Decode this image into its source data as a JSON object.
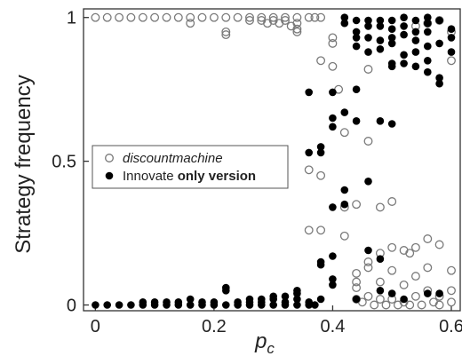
{
  "chart_data": {
    "type": "scatter",
    "title": "",
    "xlabel": "p",
    "xlabel_subscript": "c",
    "ylabel": "Strategy frequency",
    "xlim": [
      -0.02,
      0.615
    ],
    "ylim": [
      -0.02,
      1.03
    ],
    "x_ticks": [
      0,
      0.2,
      0.4,
      0.6
    ],
    "x_tick_labels": [
      "0",
      "0.2",
      "0.4",
      "0.6"
    ],
    "y_ticks": [
      0,
      0.5,
      1
    ],
    "y_tick_labels": [
      "0",
      "0.5",
      "1"
    ],
    "grid": false,
    "legend_position": "center-left",
    "legend": [
      {
        "label": "discountmachine",
        "marker": "open-circle",
        "style": "italic"
      },
      {
        "label_plain": "Innovate",
        "label_bold": "only version",
        "marker": "filled-circle"
      }
    ],
    "series": [
      {
        "name": "discountmachine",
        "marker": "open",
        "color": "#7a7a7a",
        "points": [
          [
            0.0,
            1.0
          ],
          [
            0.02,
            1.0
          ],
          [
            0.04,
            1.0
          ],
          [
            0.06,
            1.0
          ],
          [
            0.08,
            1.0
          ],
          [
            0.1,
            1.0
          ],
          [
            0.12,
            1.0
          ],
          [
            0.14,
            1.0
          ],
          [
            0.16,
            1.0
          ],
          [
            0.16,
            0.98
          ],
          [
            0.18,
            1.0
          ],
          [
            0.2,
            1.0
          ],
          [
            0.22,
            1.0
          ],
          [
            0.22,
            0.95
          ],
          [
            0.22,
            0.94
          ],
          [
            0.24,
            1.0
          ],
          [
            0.26,
            1.0
          ],
          [
            0.26,
            0.99
          ],
          [
            0.28,
            1.0
          ],
          [
            0.28,
            0.99
          ],
          [
            0.29,
            0.98
          ],
          [
            0.3,
            1.0
          ],
          [
            0.3,
            0.99
          ],
          [
            0.31,
            0.98
          ],
          [
            0.32,
            1.0
          ],
          [
            0.32,
            0.99
          ],
          [
            0.33,
            0.97
          ],
          [
            0.34,
            1.0
          ],
          [
            0.34,
            0.98
          ],
          [
            0.34,
            0.96
          ],
          [
            0.34,
            0.95
          ],
          [
            0.36,
            1.0
          ],
          [
            0.37,
            1.0
          ],
          [
            0.38,
            1.0
          ],
          [
            0.38,
            0.85
          ],
          [
            0.4,
            0.93
          ],
          [
            0.4,
            0.91
          ],
          [
            0.4,
            0.83
          ],
          [
            0.41,
            0.75
          ],
          [
            0.42,
            0.6
          ],
          [
            0.36,
            0.47
          ],
          [
            0.38,
            0.45
          ],
          [
            0.36,
            0.26
          ],
          [
            0.38,
            0.26
          ],
          [
            0.42,
            0.34
          ],
          [
            0.42,
            0.24
          ],
          [
            0.44,
            0.35
          ],
          [
            0.46,
            0.57
          ],
          [
            0.46,
            0.82
          ],
          [
            0.48,
            0.34
          ],
          [
            0.5,
            0.36
          ],
          [
            0.44,
            0.11
          ],
          [
            0.44,
            0.08
          ],
          [
            0.44,
            0.06
          ],
          [
            0.44,
            0.02
          ],
          [
            0.45,
            0.01
          ],
          [
            0.46,
            0.15
          ],
          [
            0.46,
            0.13
          ],
          [
            0.46,
            0.03
          ],
          [
            0.47,
            0.0
          ],
          [
            0.48,
            0.18
          ],
          [
            0.48,
            0.08
          ],
          [
            0.48,
            0.02
          ],
          [
            0.49,
            0.0
          ],
          [
            0.5,
            0.2
          ],
          [
            0.5,
            0.12
          ],
          [
            0.5,
            0.02
          ],
          [
            0.51,
            0.0
          ],
          [
            0.52,
            0.19
          ],
          [
            0.52,
            0.07
          ],
          [
            0.52,
            0.01
          ],
          [
            0.53,
            0.0
          ],
          [
            0.53,
            0.18
          ],
          [
            0.54,
            0.2
          ],
          [
            0.54,
            0.1
          ],
          [
            0.54,
            0.03
          ],
          [
            0.55,
            0.0
          ],
          [
            0.56,
            0.23
          ],
          [
            0.56,
            0.13
          ],
          [
            0.56,
            0.05
          ],
          [
            0.57,
            0.01
          ],
          [
            0.58,
            0.21
          ],
          [
            0.58,
            0.03
          ],
          [
            0.58,
            0.0
          ],
          [
            0.6,
            0.12
          ],
          [
            0.6,
            0.05
          ],
          [
            0.6,
            0.01
          ],
          [
            0.6,
            0.85
          ],
          [
            0.6,
            0.95
          ],
          [
            0.58,
            0.99
          ],
          [
            0.56,
            0.98
          ],
          [
            0.54,
            0.97
          ]
        ]
      },
      {
        "name": "Innovate only version",
        "marker": "filled",
        "color": "#000000",
        "points": [
          [
            0.0,
            0.0
          ],
          [
            0.02,
            0.0
          ],
          [
            0.04,
            0.0
          ],
          [
            0.06,
            0.0
          ],
          [
            0.08,
            0.0
          ],
          [
            0.08,
            0.01
          ],
          [
            0.1,
            0.0
          ],
          [
            0.1,
            0.01
          ],
          [
            0.12,
            0.0
          ],
          [
            0.12,
            0.01
          ],
          [
            0.14,
            0.0
          ],
          [
            0.14,
            0.01
          ],
          [
            0.16,
            0.0
          ],
          [
            0.16,
            0.02
          ],
          [
            0.18,
            0.0
          ],
          [
            0.18,
            0.01
          ],
          [
            0.2,
            0.0
          ],
          [
            0.2,
            0.01
          ],
          [
            0.22,
            0.0
          ],
          [
            0.22,
            0.05
          ],
          [
            0.22,
            0.06
          ],
          [
            0.24,
            0.0
          ],
          [
            0.24,
            0.01
          ],
          [
            0.26,
            0.0
          ],
          [
            0.26,
            0.01
          ],
          [
            0.26,
            0.02
          ],
          [
            0.28,
            0.0
          ],
          [
            0.28,
            0.01
          ],
          [
            0.28,
            0.02
          ],
          [
            0.3,
            0.0
          ],
          [
            0.3,
            0.02
          ],
          [
            0.3,
            0.03
          ],
          [
            0.32,
            0.0
          ],
          [
            0.32,
            0.01
          ],
          [
            0.32,
            0.03
          ],
          [
            0.34,
            0.0
          ],
          [
            0.34,
            0.02
          ],
          [
            0.34,
            0.04
          ],
          [
            0.34,
            0.05
          ],
          [
            0.36,
            0.0
          ],
          [
            0.36,
            0.01
          ],
          [
            0.37,
            0.0
          ],
          [
            0.38,
            0.02
          ],
          [
            0.38,
            0.14
          ],
          [
            0.38,
            0.15
          ],
          [
            0.4,
            0.07
          ],
          [
            0.4,
            0.09
          ],
          [
            0.4,
            0.17
          ],
          [
            0.4,
            0.34
          ],
          [
            0.42,
            0.35
          ],
          [
            0.42,
            0.4
          ],
          [
            0.38,
            0.53
          ],
          [
            0.38,
            0.55
          ],
          [
            0.36,
            0.53
          ],
          [
            0.36,
            0.74
          ],
          [
            0.4,
            0.62
          ],
          [
            0.4,
            0.65
          ],
          [
            0.4,
            0.74
          ],
          [
            0.42,
            0.67
          ],
          [
            0.44,
            0.64
          ],
          [
            0.44,
            0.75
          ],
          [
            0.48,
            0.64
          ],
          [
            0.5,
            0.63
          ],
          [
            0.46,
            0.43
          ],
          [
            0.44,
            0.02
          ],
          [
            0.46,
            0.19
          ],
          [
            0.48,
            0.16
          ],
          [
            0.48,
            0.05
          ],
          [
            0.5,
            0.04
          ],
          [
            0.52,
            0.02
          ],
          [
            0.56,
            0.04
          ],
          [
            0.58,
            0.04
          ],
          [
            0.42,
            1.0
          ],
          [
            0.42,
            0.98
          ],
          [
            0.44,
            0.99
          ],
          [
            0.44,
            0.95
          ],
          [
            0.44,
            0.93
          ],
          [
            0.44,
            0.9
          ],
          [
            0.46,
            0.99
          ],
          [
            0.46,
            0.97
          ],
          [
            0.46,
            0.93
          ],
          [
            0.46,
            0.88
          ],
          [
            0.48,
            0.99
          ],
          [
            0.48,
            0.97
          ],
          [
            0.48,
            0.92
          ],
          [
            0.48,
            0.89
          ],
          [
            0.5,
            0.99
          ],
          [
            0.5,
            0.96
          ],
          [
            0.5,
            0.93
          ],
          [
            0.5,
            0.91
          ],
          [
            0.5,
            0.84
          ],
          [
            0.5,
            0.83
          ],
          [
            0.52,
            1.0
          ],
          [
            0.52,
            0.97
          ],
          [
            0.52,
            0.94
          ],
          [
            0.52,
            0.87
          ],
          [
            0.52,
            0.84
          ],
          [
            0.54,
            0.99
          ],
          [
            0.54,
            0.95
          ],
          [
            0.54,
            0.92
          ],
          [
            0.54,
            0.88
          ],
          [
            0.54,
            0.83
          ],
          [
            0.56,
            1.0
          ],
          [
            0.56,
            0.98
          ],
          [
            0.56,
            0.95
          ],
          [
            0.56,
            0.9
          ],
          [
            0.56,
            0.85
          ],
          [
            0.56,
            0.81
          ],
          [
            0.58,
            0.99
          ],
          [
            0.58,
            0.91
          ],
          [
            0.58,
            0.79
          ],
          [
            0.58,
            0.77
          ],
          [
            0.6,
            0.96
          ],
          [
            0.6,
            0.93
          ],
          [
            0.6,
            0.88
          ]
        ]
      }
    ]
  }
}
